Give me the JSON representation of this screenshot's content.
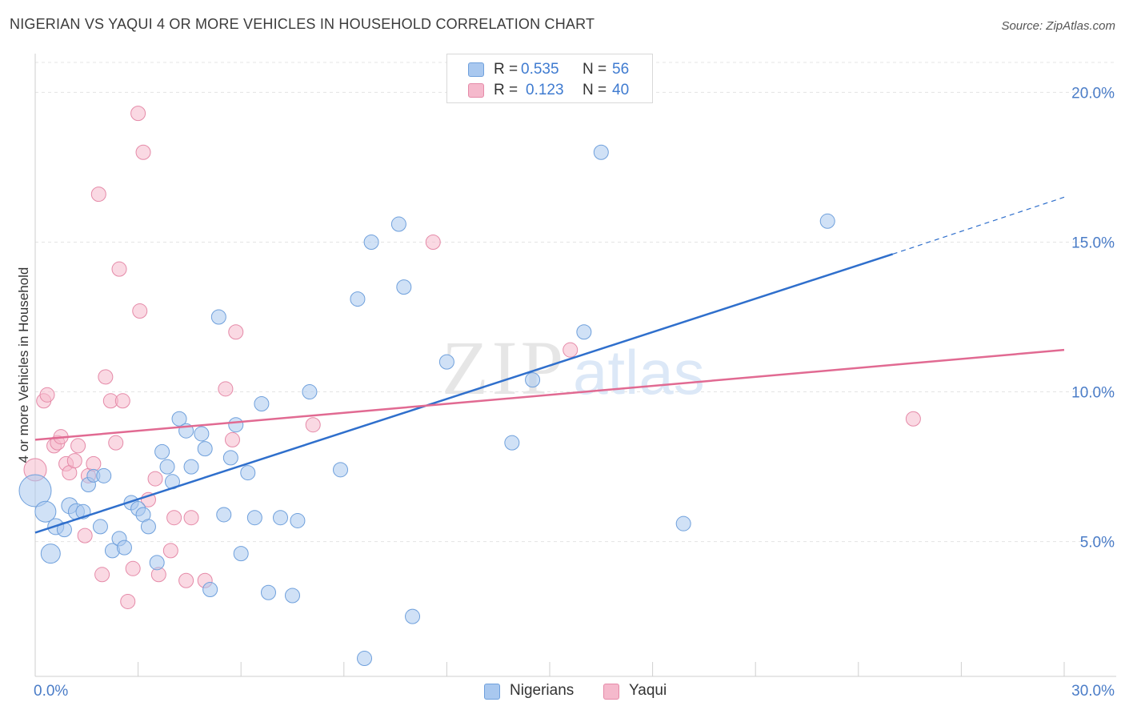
{
  "title": "NIGERIAN VS YAQUI 4 OR MORE VEHICLES IN HOUSEHOLD CORRELATION CHART",
  "source": "Source: ZipAtlas.com",
  "watermark": {
    "zip": "ZIP",
    "atlas": "atlas"
  },
  "legend_top": {
    "rows": [
      {
        "r_label": "R =",
        "r_value": "0.535",
        "n_label": "N =",
        "n_value": "56",
        "color": "#a9c8ef"
      },
      {
        "r_label": "R =",
        "r_value": "0.123",
        "n_label": "N =",
        "n_value": "40",
        "color": "#f5b9cc"
      }
    ]
  },
  "legend_bottom": {
    "items": [
      {
        "label": "Nigerians",
        "color": "#a9c8ef"
      },
      {
        "label": "Yaqui",
        "color": "#f5b9cc"
      }
    ]
  },
  "chart_data": {
    "type": "scatter",
    "title": "NIGERIAN VS YAQUI 4 OR MORE VEHICLES IN HOUSEHOLD CORRELATION CHART",
    "xlabel": "",
    "ylabel": "4 or more Vehicles in Household",
    "xlim": [
      0,
      30
    ],
    "ylim": [
      0.5,
      21
    ],
    "x_tick_labels": [
      "0.0%",
      "30.0%"
    ],
    "y_ticks": [
      5,
      10,
      15,
      20
    ],
    "y_tick_labels": [
      "5.0%",
      "10.0%",
      "15.0%",
      "20.0%"
    ],
    "grid": true,
    "legend_position": "top-center",
    "series": [
      {
        "name": "Nigerians",
        "color": "#a9c8ef",
        "stroke": "#6fa0dc",
        "line_color": "#2f6fcc",
        "trend": {
          "x1": 0.0,
          "y1": 5.3,
          "x2": 25.0,
          "y2": 14.6,
          "dash_x2": 30.0,
          "dash_y2": 16.5
        },
        "points": [
          [
            0.0,
            6.7,
            20
          ],
          [
            0.3,
            6.0,
            13
          ],
          [
            0.45,
            4.6,
            12
          ],
          [
            0.6,
            5.5,
            10
          ],
          [
            0.85,
            5.4,
            9
          ],
          [
            1.0,
            6.2,
            10
          ],
          [
            1.2,
            6.0,
            10
          ],
          [
            1.4,
            6.0,
            9
          ],
          [
            1.55,
            6.9,
            9
          ],
          [
            1.7,
            7.2,
            8
          ],
          [
            1.9,
            5.5,
            9
          ],
          [
            2.0,
            7.2,
            9
          ],
          [
            2.25,
            4.7,
            9
          ],
          [
            2.45,
            5.1,
            9
          ],
          [
            2.6,
            4.8,
            9
          ],
          [
            2.8,
            6.3,
            9
          ],
          [
            3.0,
            6.1,
            9
          ],
          [
            3.15,
            5.9,
            9
          ],
          [
            3.3,
            5.5,
            9
          ],
          [
            3.55,
            4.3,
            9
          ],
          [
            3.7,
            8.0,
            9
          ],
          [
            3.85,
            7.5,
            9
          ],
          [
            4.0,
            7.0,
            9
          ],
          [
            4.2,
            9.1,
            9
          ],
          [
            4.4,
            8.7,
            9
          ],
          [
            4.55,
            7.5,
            9
          ],
          [
            4.85,
            8.6,
            9
          ],
          [
            4.95,
            8.1,
            9
          ],
          [
            5.1,
            3.4,
            9
          ],
          [
            5.35,
            12.5,
            9
          ],
          [
            5.5,
            5.9,
            9
          ],
          [
            5.7,
            7.8,
            9
          ],
          [
            5.85,
            8.9,
            9
          ],
          [
            6.0,
            4.6,
            9
          ],
          [
            6.2,
            7.3,
            9
          ],
          [
            6.4,
            5.8,
            9
          ],
          [
            6.6,
            9.6,
            9
          ],
          [
            6.8,
            3.3,
            9
          ],
          [
            7.15,
            5.8,
            9
          ],
          [
            7.5,
            3.2,
            9
          ],
          [
            7.65,
            5.7,
            9
          ],
          [
            8.0,
            10.0,
            9
          ],
          [
            8.9,
            7.4,
            9
          ],
          [
            9.4,
            13.1,
            9
          ],
          [
            9.6,
            1.1,
            9
          ],
          [
            9.8,
            15.0,
            9
          ],
          [
            10.6,
            15.6,
            9
          ],
          [
            10.75,
            13.5,
            9
          ],
          [
            11.0,
            2.5,
            9
          ],
          [
            12.0,
            11.0,
            9
          ],
          [
            13.9,
            8.3,
            9
          ],
          [
            14.5,
            10.4,
            9
          ],
          [
            16.0,
            12.0,
            9
          ],
          [
            16.5,
            18.0,
            9
          ],
          [
            18.9,
            5.6,
            9
          ],
          [
            23.1,
            15.7,
            9
          ]
        ]
      },
      {
        "name": "Yaqui",
        "color": "#f5b9cc",
        "stroke": "#e58aa8",
        "line_color": "#e16a92",
        "trend": {
          "x1": 0.0,
          "y1": 8.4,
          "x2": 30.0,
          "y2": 11.4
        },
        "points": [
          [
            0.0,
            7.4,
            14
          ],
          [
            0.25,
            9.7,
            9
          ],
          [
            0.35,
            9.9,
            9
          ],
          [
            0.55,
            8.2,
            9
          ],
          [
            0.65,
            8.3,
            9
          ],
          [
            0.75,
            8.5,
            9
          ],
          [
            0.9,
            7.6,
            9
          ],
          [
            1.0,
            7.3,
            9
          ],
          [
            1.15,
            7.7,
            9
          ],
          [
            1.25,
            8.2,
            9
          ],
          [
            1.45,
            5.2,
            9
          ],
          [
            1.55,
            7.2,
            9
          ],
          [
            1.7,
            7.6,
            9
          ],
          [
            1.85,
            16.6,
            9
          ],
          [
            1.95,
            3.9,
            9
          ],
          [
            2.05,
            10.5,
            9
          ],
          [
            2.2,
            9.7,
            9
          ],
          [
            2.35,
            8.3,
            9
          ],
          [
            2.45,
            14.1,
            9
          ],
          [
            2.55,
            9.7,
            9
          ],
          [
            2.7,
            3.0,
            9
          ],
          [
            2.85,
            4.1,
            9
          ],
          [
            3.0,
            19.3,
            9
          ],
          [
            3.05,
            12.7,
            9
          ],
          [
            3.15,
            18.0,
            9
          ],
          [
            3.3,
            6.4,
            9
          ],
          [
            3.5,
            7.1,
            9
          ],
          [
            3.6,
            3.9,
            9
          ],
          [
            3.95,
            4.7,
            9
          ],
          [
            4.05,
            5.8,
            9
          ],
          [
            4.4,
            3.7,
            9
          ],
          [
            4.55,
            5.8,
            9
          ],
          [
            4.95,
            3.7,
            9
          ],
          [
            5.55,
            10.1,
            9
          ],
          [
            5.75,
            8.4,
            9
          ],
          [
            5.85,
            12.0,
            9
          ],
          [
            8.1,
            8.9,
            9
          ],
          [
            11.6,
            15.0,
            9
          ],
          [
            15.6,
            11.4,
            9
          ],
          [
            25.6,
            9.1,
            9
          ]
        ]
      }
    ]
  }
}
